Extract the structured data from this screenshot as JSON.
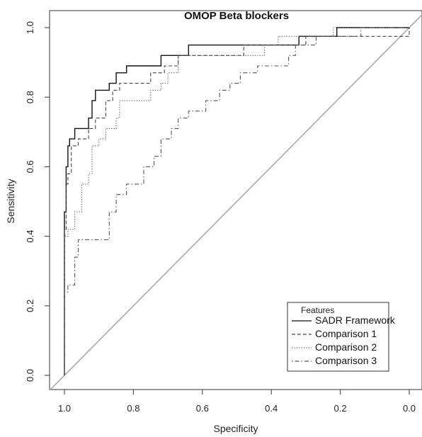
{
  "chart_data": {
    "type": "line",
    "title": "OMOP Beta blockers",
    "xlabel": "Specificity",
    "ylabel": "Sensitivity",
    "xlim": [
      1.0,
      0.0
    ],
    "ylim": [
      0.0,
      1.0
    ],
    "x_reversed": true,
    "x_ticks": [
      "1.0",
      "0.8",
      "0.6",
      "0.4",
      "0.2",
      "0.0"
    ],
    "y_ticks": [
      "0.0",
      "0.2",
      "0.4",
      "0.6",
      "0.8",
      "1.0"
    ],
    "legend": {
      "title": "Features",
      "position": "bottom-right"
    },
    "reference_line": {
      "points": [
        [
          1.0,
          0.0
        ],
        [
          0.0,
          1.0
        ]
      ],
      "color": "#aaaaaa"
    },
    "series": [
      {
        "name": "SADR Framework",
        "style": "solid",
        "color": "#111111",
        "points": [
          [
            1.0,
            0.0
          ],
          [
            1.0,
            0.47
          ],
          [
            0.995,
            0.47
          ],
          [
            0.995,
            0.6
          ],
          [
            0.99,
            0.6
          ],
          [
            0.99,
            0.66
          ],
          [
            0.985,
            0.66
          ],
          [
            0.985,
            0.68
          ],
          [
            0.97,
            0.68
          ],
          [
            0.97,
            0.71
          ],
          [
            0.93,
            0.71
          ],
          [
            0.93,
            0.74
          ],
          [
            0.92,
            0.74
          ],
          [
            0.92,
            0.79
          ],
          [
            0.91,
            0.79
          ],
          [
            0.91,
            0.82
          ],
          [
            0.87,
            0.82
          ],
          [
            0.87,
            0.84
          ],
          [
            0.85,
            0.84
          ],
          [
            0.85,
            0.87
          ],
          [
            0.82,
            0.87
          ],
          [
            0.82,
            0.89
          ],
          [
            0.72,
            0.89
          ],
          [
            0.72,
            0.92
          ],
          [
            0.64,
            0.92
          ],
          [
            0.64,
            0.95
          ],
          [
            0.32,
            0.95
          ],
          [
            0.32,
            0.975
          ],
          [
            0.21,
            0.975
          ],
          [
            0.21,
            1.0
          ],
          [
            0.0,
            1.0
          ]
        ]
      },
      {
        "name": "Comparison 1",
        "style": "dashed",
        "color": "#444444",
        "points": [
          [
            1.0,
            0.0
          ],
          [
            1.0,
            0.42
          ],
          [
            0.995,
            0.42
          ],
          [
            0.995,
            0.55
          ],
          [
            0.99,
            0.55
          ],
          [
            0.99,
            0.58
          ],
          [
            0.98,
            0.58
          ],
          [
            0.98,
            0.66
          ],
          [
            0.96,
            0.66
          ],
          [
            0.96,
            0.68
          ],
          [
            0.93,
            0.68
          ],
          [
            0.93,
            0.71
          ],
          [
            0.91,
            0.71
          ],
          [
            0.91,
            0.74
          ],
          [
            0.88,
            0.74
          ],
          [
            0.88,
            0.79
          ],
          [
            0.86,
            0.79
          ],
          [
            0.86,
            0.82
          ],
          [
            0.84,
            0.82
          ],
          [
            0.84,
            0.84
          ],
          [
            0.75,
            0.84
          ],
          [
            0.75,
            0.87
          ],
          [
            0.71,
            0.87
          ],
          [
            0.71,
            0.89
          ],
          [
            0.67,
            0.89
          ],
          [
            0.67,
            0.92
          ],
          [
            0.48,
            0.92
          ],
          [
            0.48,
            0.95
          ],
          [
            0.3,
            0.95
          ],
          [
            0.3,
            0.975
          ],
          [
            0.0,
            0.975
          ],
          [
            0.0,
            1.0
          ]
        ]
      },
      {
        "name": "Comparison 2",
        "style": "dotted",
        "color": "#555555",
        "points": [
          [
            1.0,
            0.0
          ],
          [
            1.0,
            0.4
          ],
          [
            0.99,
            0.4
          ],
          [
            0.99,
            0.42
          ],
          [
            0.97,
            0.42
          ],
          [
            0.97,
            0.47
          ],
          [
            0.95,
            0.47
          ],
          [
            0.95,
            0.55
          ],
          [
            0.93,
            0.55
          ],
          [
            0.93,
            0.58
          ],
          [
            0.92,
            0.58
          ],
          [
            0.92,
            0.66
          ],
          [
            0.9,
            0.66
          ],
          [
            0.9,
            0.68
          ],
          [
            0.88,
            0.68
          ],
          [
            0.88,
            0.71
          ],
          [
            0.85,
            0.71
          ],
          [
            0.85,
            0.74
          ],
          [
            0.84,
            0.74
          ],
          [
            0.84,
            0.79
          ],
          [
            0.75,
            0.79
          ],
          [
            0.75,
            0.82
          ],
          [
            0.72,
            0.82
          ],
          [
            0.72,
            0.84
          ],
          [
            0.7,
            0.84
          ],
          [
            0.7,
            0.87
          ],
          [
            0.67,
            0.87
          ],
          [
            0.67,
            0.92
          ],
          [
            0.42,
            0.92
          ],
          [
            0.42,
            0.95
          ],
          [
            0.38,
            0.95
          ],
          [
            0.38,
            0.975
          ],
          [
            0.22,
            0.975
          ],
          [
            0.22,
            1.0
          ],
          [
            0.0,
            1.0
          ]
        ]
      },
      {
        "name": "Comparison 3",
        "style": "dashdot",
        "color": "#555555",
        "points": [
          [
            1.0,
            0.0
          ],
          [
            1.0,
            0.24
          ],
          [
            0.99,
            0.24
          ],
          [
            0.99,
            0.26
          ],
          [
            0.97,
            0.26
          ],
          [
            0.97,
            0.34
          ],
          [
            0.96,
            0.34
          ],
          [
            0.96,
            0.39
          ],
          [
            0.87,
            0.39
          ],
          [
            0.87,
            0.47
          ],
          [
            0.85,
            0.47
          ],
          [
            0.85,
            0.52
          ],
          [
            0.82,
            0.52
          ],
          [
            0.82,
            0.55
          ],
          [
            0.77,
            0.55
          ],
          [
            0.77,
            0.6
          ],
          [
            0.74,
            0.6
          ],
          [
            0.74,
            0.63
          ],
          [
            0.72,
            0.63
          ],
          [
            0.72,
            0.68
          ],
          [
            0.69,
            0.68
          ],
          [
            0.69,
            0.71
          ],
          [
            0.67,
            0.71
          ],
          [
            0.67,
            0.74
          ],
          [
            0.64,
            0.74
          ],
          [
            0.64,
            0.76
          ],
          [
            0.59,
            0.76
          ],
          [
            0.59,
            0.79
          ],
          [
            0.55,
            0.79
          ],
          [
            0.55,
            0.82
          ],
          [
            0.52,
            0.82
          ],
          [
            0.52,
            0.84
          ],
          [
            0.49,
            0.84
          ],
          [
            0.49,
            0.87
          ],
          [
            0.44,
            0.87
          ],
          [
            0.44,
            0.89
          ],
          [
            0.35,
            0.89
          ],
          [
            0.35,
            0.92
          ],
          [
            0.33,
            0.92
          ],
          [
            0.33,
            0.95
          ],
          [
            0.27,
            0.95
          ],
          [
            0.27,
            0.975
          ],
          [
            0.14,
            0.975
          ],
          [
            0.14,
            1.0
          ],
          [
            0.0,
            1.0
          ]
        ]
      }
    ]
  }
}
